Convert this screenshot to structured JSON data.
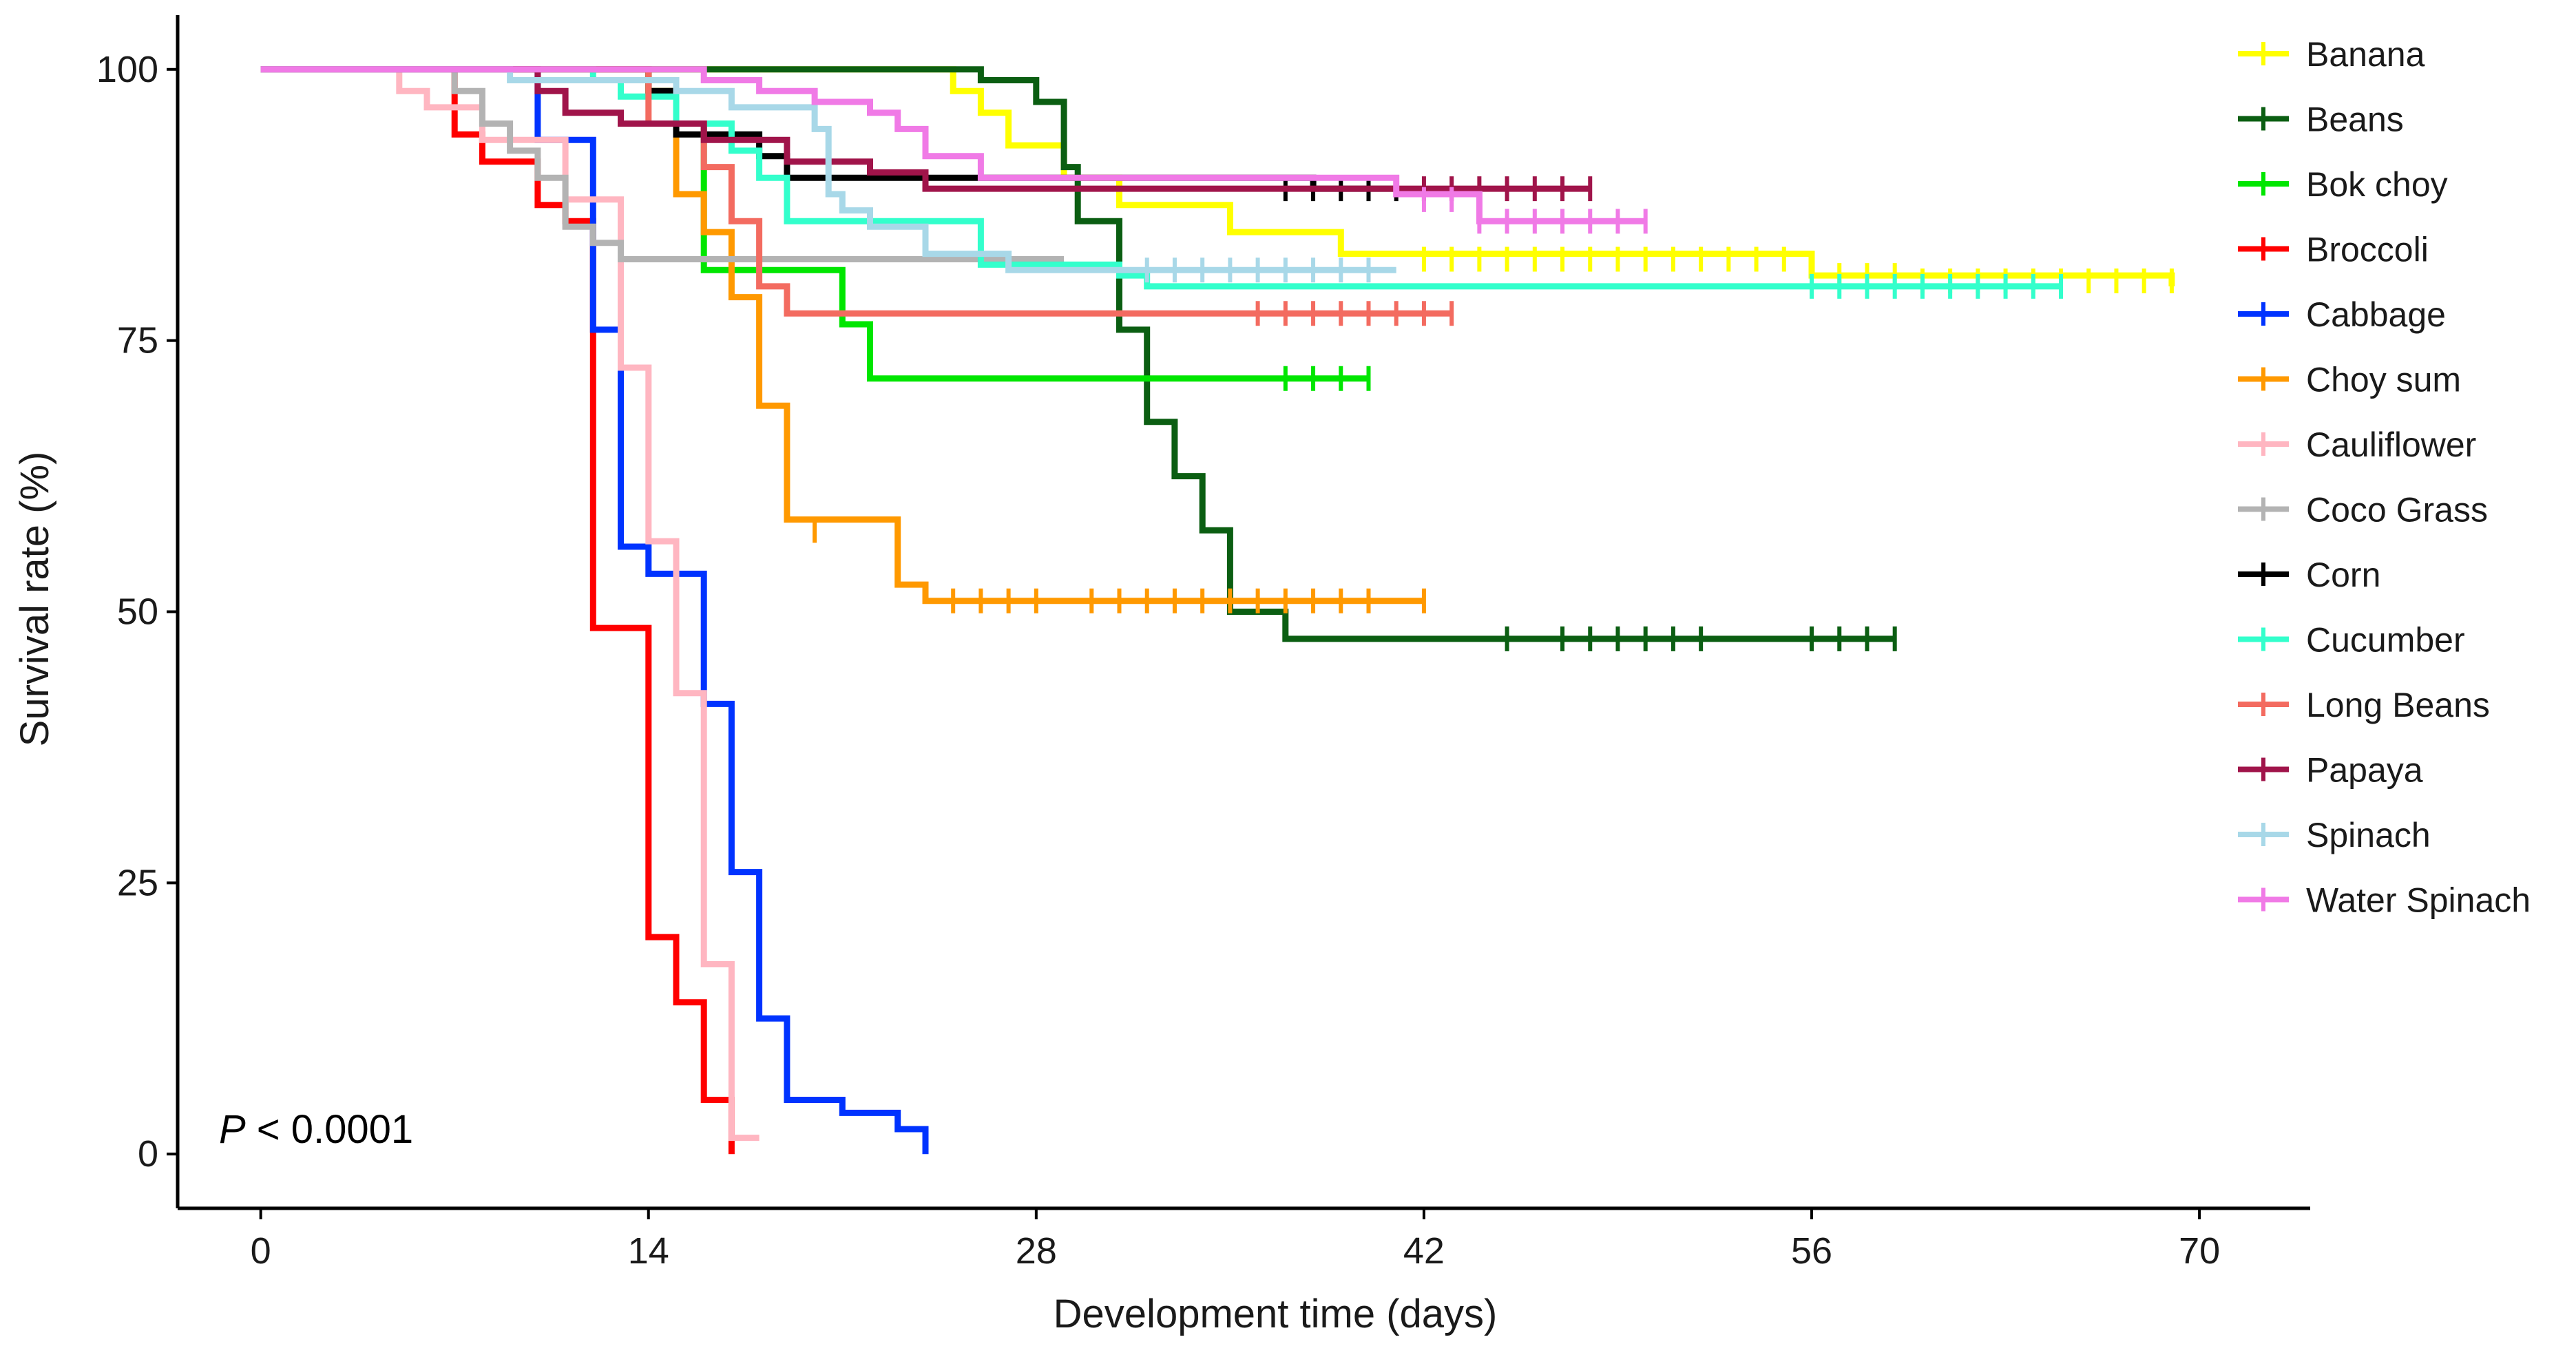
{
  "chart_data": {
    "type": "line",
    "subtype": "kaplan-meier-step",
    "title": "",
    "xlabel": "Development time (days)",
    "ylabel": "Survival rate (%)",
    "xlim": [
      -3,
      74
    ],
    "ylim": [
      -5,
      105
    ],
    "xticks": [
      0,
      14,
      28,
      42,
      56,
      70
    ],
    "xtick_labels": [
      "0",
      "14",
      "28",
      "42",
      "56",
      "70"
    ],
    "yticks": [
      0,
      25,
      50,
      75,
      100
    ],
    "ytick_labels": [
      "0",
      "25",
      "50",
      "75",
      "100"
    ],
    "annotation": {
      "prefix": "P",
      "text": " < 0.0001"
    },
    "legend_position": "right",
    "series": [
      {
        "name": "Banana",
        "color": "#ffff00",
        "steps": [
          [
            0,
            100
          ],
          [
            25,
            98
          ],
          [
            26,
            96
          ],
          [
            27,
            93
          ],
          [
            29,
            90
          ],
          [
            31,
            87.5
          ],
          [
            35,
            85
          ],
          [
            39,
            83
          ],
          [
            56,
            81
          ],
          [
            69,
            80
          ]
        ],
        "censored": [
          [
            42,
            82.5
          ],
          [
            43,
            82.5
          ],
          [
            44,
            82.5
          ],
          [
            45,
            82.5
          ],
          [
            46,
            82.5
          ],
          [
            47,
            82.5
          ],
          [
            48,
            82.5
          ],
          [
            49,
            82.5
          ],
          [
            50,
            82.5
          ],
          [
            51,
            82.5
          ],
          [
            52,
            82.5
          ],
          [
            53,
            82.5
          ],
          [
            54,
            82.5
          ],
          [
            55,
            82.5
          ],
          [
            56,
            81
          ],
          [
            57,
            81
          ],
          [
            58,
            81
          ],
          [
            59,
            81
          ],
          [
            60,
            80.5
          ],
          [
            61,
            80.5
          ],
          [
            62,
            80.5
          ],
          [
            63,
            80.5
          ],
          [
            64,
            80.5
          ],
          [
            65,
            80.5
          ],
          [
            66,
            80.5
          ],
          [
            67,
            80.5
          ],
          [
            68,
            80.5
          ],
          [
            69,
            80.5
          ]
        ]
      },
      {
        "name": "Beans",
        "color": "#0b5e12",
        "steps": [
          [
            0,
            100
          ],
          [
            26,
            99
          ],
          [
            28,
            97
          ],
          [
            29,
            91
          ],
          [
            29.5,
            86
          ],
          [
            31,
            76
          ],
          [
            32,
            67.5
          ],
          [
            33,
            62.5
          ],
          [
            34,
            57.5
          ],
          [
            35,
            50
          ],
          [
            37,
            47.5
          ],
          [
            59,
            47.5
          ]
        ],
        "censored": [
          [
            45,
            47.5
          ],
          [
            47,
            47.5
          ],
          [
            48,
            47.5
          ],
          [
            49,
            47.5
          ],
          [
            50,
            47.5
          ],
          [
            51,
            47.5
          ],
          [
            52,
            47.5
          ],
          [
            56,
            47.5
          ],
          [
            57,
            47.5
          ],
          [
            58,
            47.5
          ],
          [
            59,
            47.5
          ]
        ]
      },
      {
        "name": "Bok choy",
        "color": "#00e600",
        "steps": [
          [
            0,
            100
          ],
          [
            14,
            98
          ],
          [
            15,
            95
          ],
          [
            16,
            81.5
          ],
          [
            21,
            76.5
          ],
          [
            22,
            71.5
          ],
          [
            40,
            71.5
          ]
        ],
        "censored": [
          [
            37,
            71.5
          ],
          [
            38,
            71.5
          ],
          [
            39,
            71.5
          ],
          [
            40,
            71.5
          ]
        ]
      },
      {
        "name": "Broccoli",
        "color": "#ff0000",
        "steps": [
          [
            0,
            100
          ],
          [
            7,
            94
          ],
          [
            8,
            91.5
          ],
          [
            10,
            87.5
          ],
          [
            11,
            86
          ],
          [
            12,
            48.5
          ],
          [
            14,
            20
          ],
          [
            15,
            14
          ],
          [
            16,
            5
          ],
          [
            17,
            0
          ]
        ],
        "censored": []
      },
      {
        "name": "Cabbage",
        "color": "#0033ff",
        "steps": [
          [
            0,
            100
          ],
          [
            10,
            93.5
          ],
          [
            12,
            76
          ],
          [
            13,
            56
          ],
          [
            14,
            53.5
          ],
          [
            16,
            41.5
          ],
          [
            17,
            26
          ],
          [
            18,
            12.5
          ],
          [
            19,
            5
          ],
          [
            21,
            3.8
          ],
          [
            23,
            2.3
          ],
          [
            24,
            0
          ]
        ],
        "censored": []
      },
      {
        "name": "Choy sum",
        "color": "#ff9900",
        "steps": [
          [
            0,
            100
          ],
          [
            14,
            98
          ],
          [
            15,
            88.5
          ],
          [
            16,
            85
          ],
          [
            17,
            79
          ],
          [
            18,
            69
          ],
          [
            19,
            58.5
          ],
          [
            23,
            52.5
          ],
          [
            24,
            51
          ],
          [
            42,
            51
          ]
        ],
        "censored": [
          [
            20,
            57.5
          ],
          [
            25,
            51
          ],
          [
            26,
            51
          ],
          [
            27,
            51
          ],
          [
            28,
            51
          ],
          [
            30,
            51
          ],
          [
            31,
            51
          ],
          [
            32,
            51
          ],
          [
            33,
            51
          ],
          [
            34,
            51
          ],
          [
            35,
            51
          ],
          [
            36,
            51
          ],
          [
            37,
            51
          ],
          [
            38,
            51
          ],
          [
            39,
            51
          ],
          [
            40,
            51
          ],
          [
            42,
            51
          ]
        ]
      },
      {
        "name": "Cauliflower",
        "color": "#ffb6c1",
        "steps": [
          [
            0,
            100
          ],
          [
            5,
            98
          ],
          [
            6,
            96.5
          ],
          [
            8,
            93.5
          ],
          [
            11,
            88
          ],
          [
            13,
            72.5
          ],
          [
            14,
            56.5
          ],
          [
            15,
            42.5
          ],
          [
            16,
            17.5
          ],
          [
            17,
            1.5
          ],
          [
            18,
            1.5
          ]
        ],
        "censored": []
      },
      {
        "name": "Coco Grass",
        "color": "#b3b3b3",
        "steps": [
          [
            0,
            100
          ],
          [
            7,
            98
          ],
          [
            8,
            95
          ],
          [
            9,
            92.5
          ],
          [
            10,
            90
          ],
          [
            11,
            85.5
          ],
          [
            12,
            84
          ],
          [
            13,
            82.5
          ],
          [
            29,
            82.5
          ]
        ],
        "censored": []
      },
      {
        "name": "Corn",
        "color": "#000000",
        "steps": [
          [
            0,
            100
          ],
          [
            14,
            98
          ],
          [
            15,
            94
          ],
          [
            18,
            92
          ],
          [
            19,
            90
          ],
          [
            38,
            89
          ],
          [
            41,
            89
          ]
        ],
        "censored": [
          [
            37,
            89
          ],
          [
            38,
            89
          ],
          [
            39,
            89
          ],
          [
            40,
            89
          ],
          [
            41,
            89
          ]
        ]
      },
      {
        "name": "Cucumber",
        "color": "#33ffcc",
        "steps": [
          [
            0,
            100
          ],
          [
            12,
            99
          ],
          [
            13,
            97.5
          ],
          [
            15,
            95
          ],
          [
            17,
            92.5
          ],
          [
            18,
            90
          ],
          [
            19,
            86
          ],
          [
            26,
            82
          ],
          [
            31,
            81
          ],
          [
            32,
            80
          ],
          [
            65,
            80
          ]
        ],
        "censored": [
          [
            56,
            80
          ],
          [
            57,
            80
          ],
          [
            58,
            80
          ],
          [
            59,
            80
          ],
          [
            60,
            80
          ],
          [
            61,
            80
          ],
          [
            62,
            80
          ],
          [
            63,
            80
          ],
          [
            64,
            80
          ],
          [
            65,
            80
          ]
        ]
      },
      {
        "name": "Long Beans",
        "color": "#f36b60",
        "steps": [
          [
            0,
            100
          ],
          [
            14,
            95
          ],
          [
            16,
            91
          ],
          [
            17,
            86
          ],
          [
            18,
            80
          ],
          [
            19,
            77.5
          ],
          [
            43,
            77.5
          ]
        ],
        "censored": [
          [
            36,
            77.5
          ],
          [
            37,
            77.5
          ],
          [
            38,
            77.5
          ],
          [
            39,
            77.5
          ],
          [
            40,
            77.5
          ],
          [
            41,
            77.5
          ],
          [
            42,
            77.5
          ],
          [
            43,
            77.5
          ]
        ]
      },
      {
        "name": "Papaya",
        "color": "#a0144a",
        "steps": [
          [
            0,
            100
          ],
          [
            10,
            98
          ],
          [
            11,
            96
          ],
          [
            13,
            95
          ],
          [
            16,
            93.5
          ],
          [
            19,
            91.5
          ],
          [
            22,
            90.5
          ],
          [
            24,
            89
          ],
          [
            48,
            89
          ]
        ],
        "censored": [
          [
            42,
            89
          ],
          [
            43,
            89
          ],
          [
            44,
            89
          ],
          [
            45,
            89
          ],
          [
            46,
            89
          ],
          [
            47,
            89
          ],
          [
            48,
            89
          ]
        ]
      },
      {
        "name": "Spinach",
        "color": "#a8d8e8",
        "steps": [
          [
            0,
            100
          ],
          [
            9,
            99
          ],
          [
            15,
            98
          ],
          [
            17,
            96.5
          ],
          [
            20,
            94.5
          ],
          [
            20.5,
            88.5
          ],
          [
            21,
            87
          ],
          [
            22,
            85.5
          ],
          [
            24,
            83
          ],
          [
            27,
            81.5
          ],
          [
            41,
            81.5
          ]
        ],
        "censored": [
          [
            32,
            81.5
          ],
          [
            33,
            81.5
          ],
          [
            34,
            81.5
          ],
          [
            35,
            81.5
          ],
          [
            36,
            81.5
          ],
          [
            37,
            81.5
          ],
          [
            38,
            81.5
          ],
          [
            39,
            81.5
          ],
          [
            40,
            81.5
          ]
        ]
      },
      {
        "name": "Water Spinach",
        "color": "#f07ae6",
        "steps": [
          [
            0,
            100
          ],
          [
            16,
            99
          ],
          [
            18,
            98
          ],
          [
            20,
            97
          ],
          [
            22,
            96
          ],
          [
            23,
            94.5
          ],
          [
            24,
            92
          ],
          [
            26,
            90
          ],
          [
            41,
            88.5
          ],
          [
            44,
            86
          ],
          [
            50,
            86
          ]
        ],
        "censored": [
          [
            42,
            88
          ],
          [
            43,
            88
          ],
          [
            44,
            86
          ],
          [
            45,
            86
          ],
          [
            46,
            86
          ],
          [
            47,
            86
          ],
          [
            48,
            86
          ],
          [
            49,
            86
          ],
          [
            50,
            86
          ]
        ]
      }
    ]
  }
}
